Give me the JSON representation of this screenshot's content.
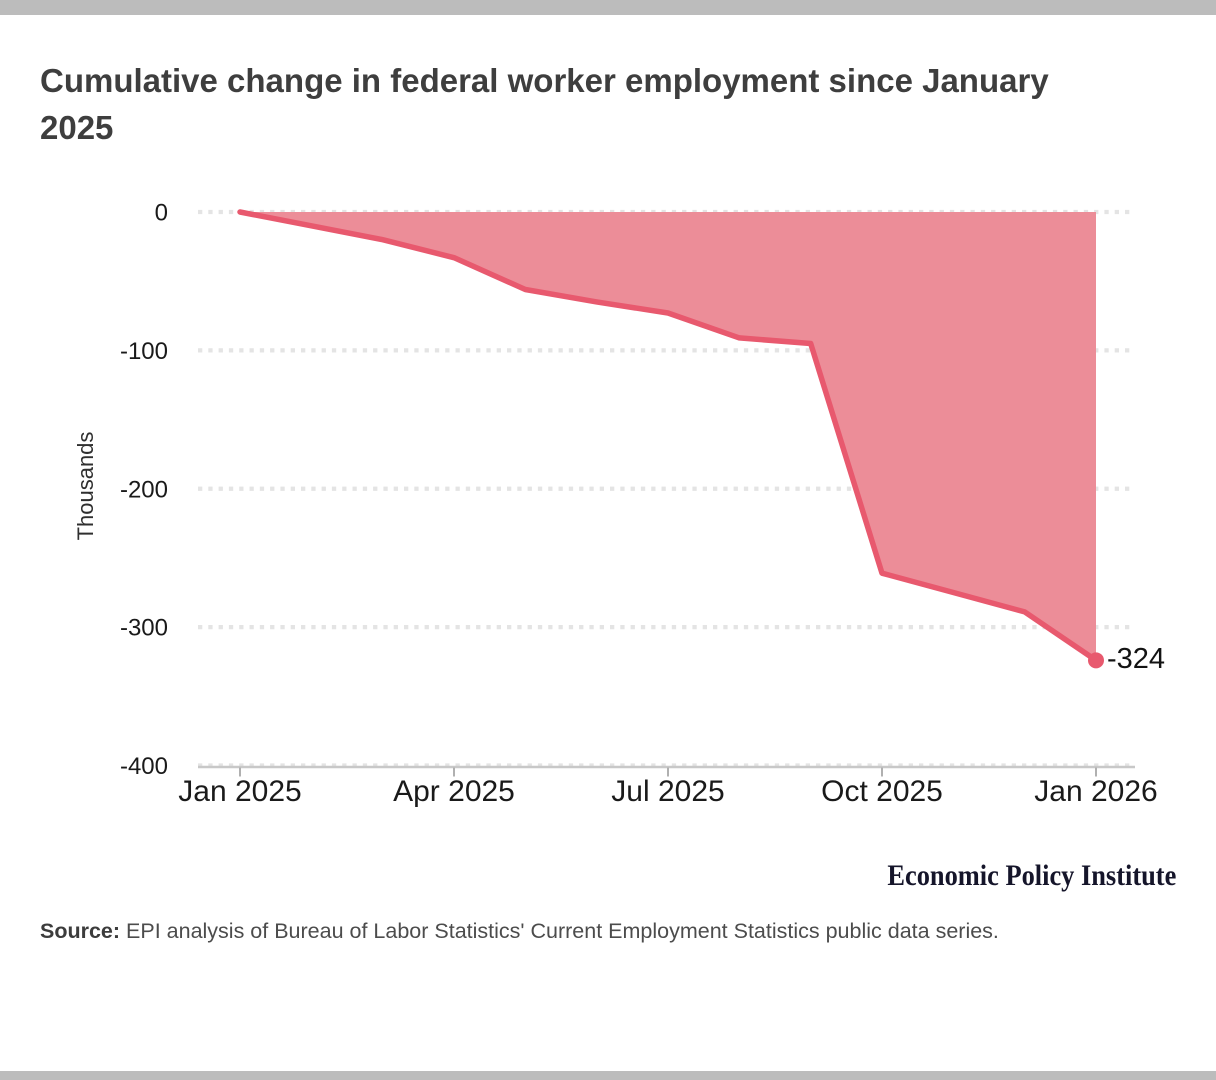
{
  "page": {
    "bar_color": "#bcbcbc",
    "background": "#ffffff"
  },
  "title": "Cumulative change in federal worker employment since January 2025",
  "branding": {
    "text": "Economic Policy Institute"
  },
  "source": {
    "label": "Source:",
    "text": " EPI analysis of Bureau of Labor Statistics' Current Employment Statistics public data series."
  },
  "chart_data": {
    "type": "area",
    "title": "Cumulative change in federal worker employment since January 2025",
    "ylabel": "Thousands",
    "xlabel": "",
    "x": [
      "Jan 2025",
      "Feb 2025",
      "Mar 2025",
      "Apr 2025",
      "May 2025",
      "Jun 2025",
      "Jul 2025",
      "Aug 2025",
      "Sep 2025",
      "Oct 2025",
      "Nov 2025",
      "Dec 2025",
      "Jan 2026"
    ],
    "values": [
      0,
      -10,
      -20,
      -33,
      -56,
      -65,
      -73,
      -91,
      -95,
      -261,
      -275,
      -289,
      -324
    ],
    "x_tick_labels": [
      "Jan 2025",
      "Apr 2025",
      "Jul 2025",
      "Oct 2025",
      "Jan 2026"
    ],
    "y_ticks": [
      0,
      -100,
      -200,
      -300,
      -400
    ],
    "ylim": [
      -400,
      0
    ],
    "grid": "dotted horizontal gridlines",
    "legend": "none",
    "annotation": {
      "text": "-324",
      "x": "Jan 2026",
      "value": -324
    },
    "colors": {
      "fill": "#ec8d98",
      "line": "#e8596e",
      "marker": "#e8596e",
      "gridline": "#e4e4e4",
      "axis": "#c8c8c8",
      "tick": "#b0b0b0"
    }
  }
}
